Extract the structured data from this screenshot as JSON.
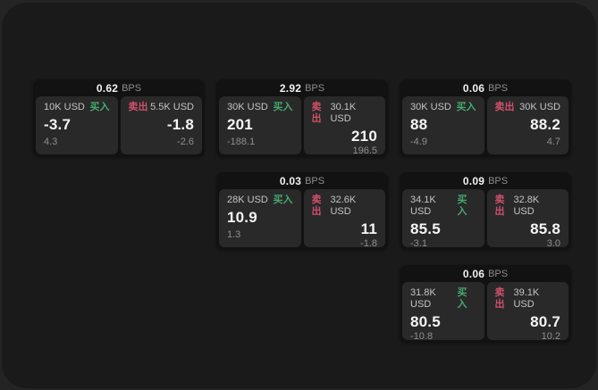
{
  "colors": {
    "buy": "#46a871",
    "sell": "#d0506a",
    "background": "#242424",
    "surface": "#1a1a1a",
    "card": "#121212",
    "panel": "#292929"
  },
  "labels": {
    "bps_unit": "BPS",
    "buy": "买入",
    "sell": "卖出"
  },
  "cards": [
    {
      "col": 1,
      "row": 1,
      "bps": "0.62",
      "buy": {
        "size": "10K USD",
        "value": "-3.7",
        "sub": "4.3"
      },
      "sell": {
        "size": "5.5K USD",
        "value": "-1.8",
        "sub": "-2.6"
      }
    },
    {
      "col": 2,
      "row": 1,
      "bps": "2.92",
      "buy": {
        "size": "30K USD",
        "value": "201",
        "sub": "-188.1"
      },
      "sell": {
        "size": "30.1K USD",
        "value": "210",
        "sub": "196.5"
      }
    },
    {
      "col": 3,
      "row": 1,
      "bps": "0.06",
      "buy": {
        "size": "30K USD",
        "value": "88",
        "sub": "-4.9"
      },
      "sell": {
        "size": "30K USD",
        "value": "88.2",
        "sub": "4.7"
      }
    },
    {
      "col": 2,
      "row": 2,
      "bps": "0.03",
      "buy": {
        "size": "28K USD",
        "value": "10.9",
        "sub": "1.3"
      },
      "sell": {
        "size": "32.6K USD",
        "value": "11",
        "sub": "-1.8"
      }
    },
    {
      "col": 3,
      "row": 2,
      "bps": "0.09",
      "buy": {
        "size": "34.1K USD",
        "value": "85.5",
        "sub": "-3.1"
      },
      "sell": {
        "size": "32.8K USD",
        "value": "85.8",
        "sub": "3.0"
      }
    },
    {
      "col": 3,
      "row": 3,
      "bps": "0.06",
      "buy": {
        "size": "31.8K USD",
        "value": "80.5",
        "sub": "-10.8"
      },
      "sell": {
        "size": "39.1K USD",
        "value": "80.7",
        "sub": "10.2"
      }
    }
  ]
}
